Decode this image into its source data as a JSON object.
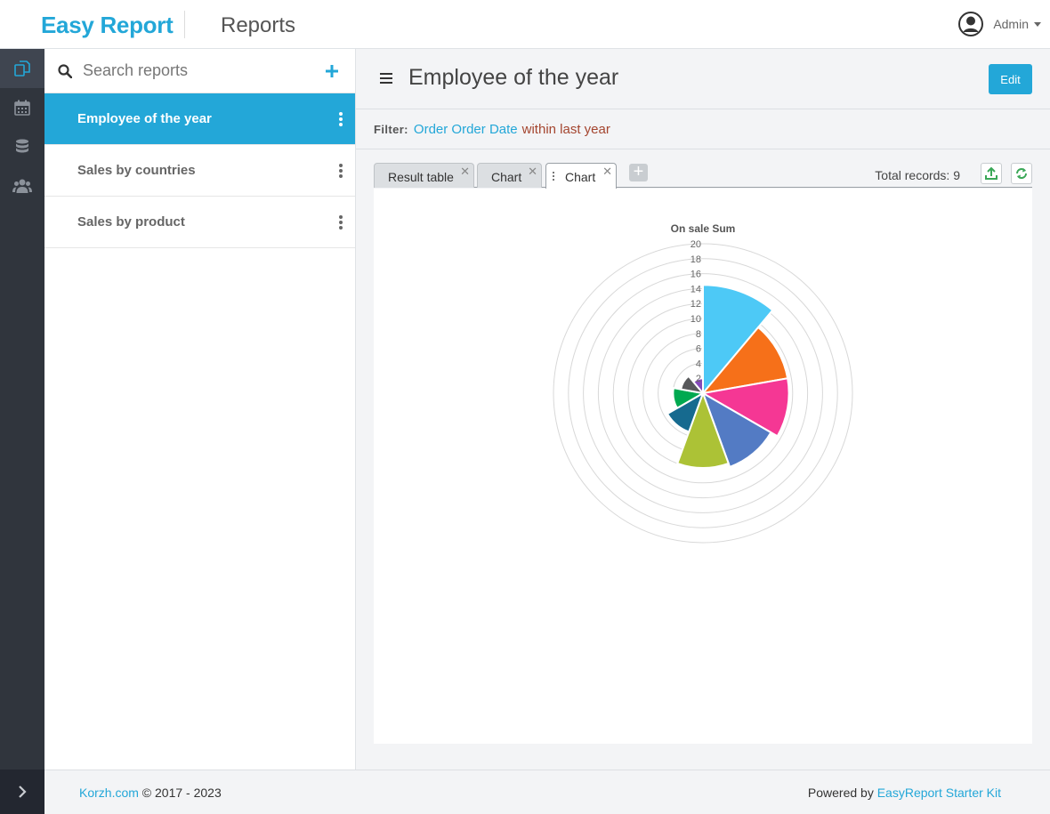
{
  "header": {
    "brand": "Easy Report",
    "section": "Reports",
    "user_name": "Admin"
  },
  "rail": {
    "items": [
      "reports-icon",
      "calendar-icon",
      "database-icon",
      "users-icon"
    ],
    "active_index": 0
  },
  "sidebar": {
    "search_placeholder": "Search reports",
    "reports": [
      {
        "label": "Employee of the year",
        "active": true
      },
      {
        "label": "Sales by countries",
        "active": false
      },
      {
        "label": "Sales by product",
        "active": false
      }
    ]
  },
  "main": {
    "title": "Employee of the year",
    "edit_label": "Edit",
    "filter": {
      "label": "Filter:",
      "field": "Order Order Date",
      "condition": "within last year"
    },
    "tabs": [
      {
        "label": "Result table",
        "active": false
      },
      {
        "label": "Chart",
        "active": false
      },
      {
        "label": "Chart",
        "active": true
      }
    ],
    "total_records": "Total records: 9"
  },
  "chart_data": {
    "type": "polar-area",
    "title": "On sale Sum",
    "rmax": 20,
    "radial_ticks": [
      20,
      18,
      16,
      14,
      12,
      10,
      8,
      6,
      4,
      2
    ],
    "values": [
      14.5,
      11.5,
      11.5,
      10.5,
      10,
      5.5,
      4,
      3,
      2
    ],
    "colors": [
      "#4dc9f6",
      "#f67019",
      "#f53794",
      "#537bc4",
      "#acc236",
      "#166a8f",
      "#00a950",
      "#58595b",
      "#8549ba"
    ]
  },
  "footer": {
    "site": "Korzh.com",
    "copyright": " © 2017 - 2023",
    "powered_by": "Powered by ",
    "kit": "EasyReport Starter Kit"
  }
}
